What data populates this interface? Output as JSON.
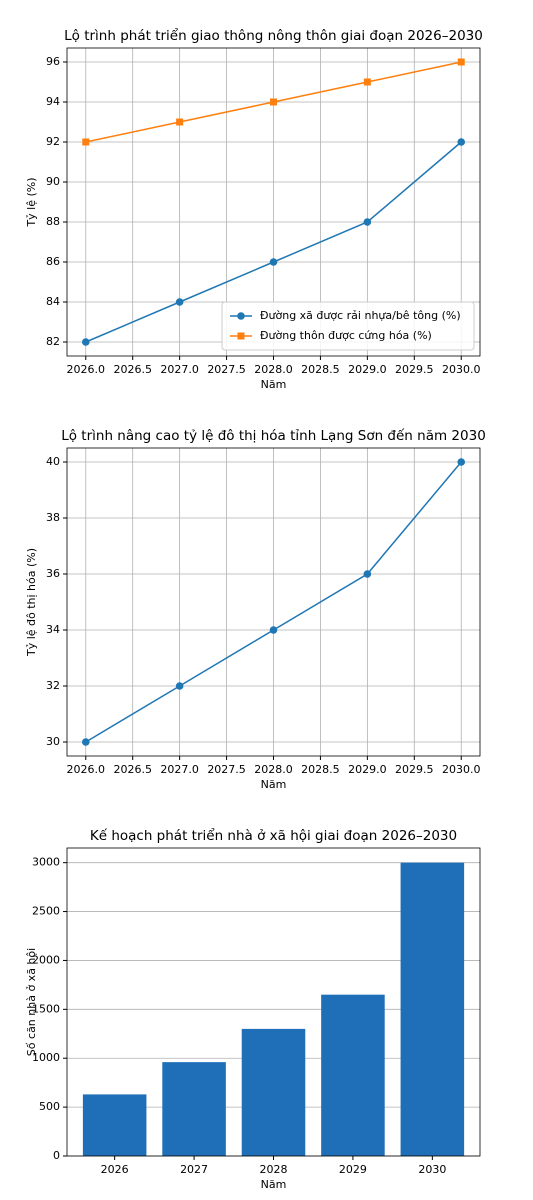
{
  "chart_data": [
    {
      "type": "line",
      "title": "Lộ trình phát triển giao thông nông thôn giai đoạn 2026–2030",
      "xlabel": "Năm",
      "ylabel": "Tỷ lệ (%)",
      "x": [
        2026,
        2027,
        2028,
        2029,
        2030
      ],
      "series": [
        {
          "name": "Đường xã được rải nhựa/bê tông (%)",
          "color": "#1f77b4",
          "marker": "circle",
          "values": [
            82,
            84,
            86,
            88,
            92
          ]
        },
        {
          "name": "Đường thôn được cứng hóa (%)",
          "color": "#ff7f0e",
          "marker": "square",
          "values": [
            92,
            93,
            94,
            95,
            96
          ]
        }
      ],
      "xlim": [
        2025.8,
        2030.2
      ],
      "xticks": [
        {
          "value": 2026,
          "label": "2026.0"
        },
        {
          "value": 2026.5,
          "label": "2026.5"
        },
        {
          "value": 2027,
          "label": "2027.0"
        },
        {
          "value": 2027.5,
          "label": "2027.5"
        },
        {
          "value": 2028,
          "label": "2028.0"
        },
        {
          "value": 2028.5,
          "label": "2028.5"
        },
        {
          "value": 2029,
          "label": "2029.0"
        },
        {
          "value": 2029.5,
          "label": "2029.5"
        },
        {
          "value": 2030,
          "label": "2030.0"
        }
      ],
      "ylim": [
        81.3,
        96.7
      ],
      "yticks": [
        82,
        84,
        86,
        88,
        90,
        92,
        94,
        96
      ],
      "grid": "both",
      "legend": "lower right"
    },
    {
      "type": "line",
      "title": "Lộ trình nâng cao tỷ lệ đô thị hóa tỉnh Lạng Sơn đến năm 2030",
      "xlabel": "Năm",
      "ylabel": "Tỷ lệ đô thị hóa (%)",
      "x": [
        2026,
        2027,
        2028,
        2029,
        2030
      ],
      "series": [
        {
          "color": "#1f77b4",
          "marker": "circle",
          "values": [
            30,
            32,
            34,
            36,
            40
          ]
        }
      ],
      "xlim": [
        2025.8,
        2030.2
      ],
      "xticks": [
        {
          "value": 2026,
          "label": "2026.0"
        },
        {
          "value": 2026.5,
          "label": "2026.5"
        },
        {
          "value": 2027,
          "label": "2027.0"
        },
        {
          "value": 2027.5,
          "label": "2027.5"
        },
        {
          "value": 2028,
          "label": "2028.0"
        },
        {
          "value": 2028.5,
          "label": "2028.5"
        },
        {
          "value": 2029,
          "label": "2029.0"
        },
        {
          "value": 2029.5,
          "label": "2029.5"
        },
        {
          "value": 2030,
          "label": "2030.0"
        }
      ],
      "ylim": [
        29.5,
        40.5
      ],
      "yticks": [
        30,
        32,
        34,
        36,
        38,
        40
      ],
      "grid": "both"
    },
    {
      "type": "bar",
      "title": "Kế hoạch phát triển nhà ở xã hội giai đoạn 2026–2030",
      "xlabel": "Năm",
      "ylabel": "Số căn nhà ở xã hội",
      "categories": [
        "2026",
        "2027",
        "2028",
        "2029",
        "2030"
      ],
      "values": [
        630,
        960,
        1300,
        1650,
        3000
      ],
      "color": "#1f6fb8",
      "ylim": [
        0,
        3150
      ],
      "yticks": [
        0,
        500,
        1000,
        1500,
        2000,
        2500,
        3000
      ],
      "grid": "y"
    }
  ]
}
